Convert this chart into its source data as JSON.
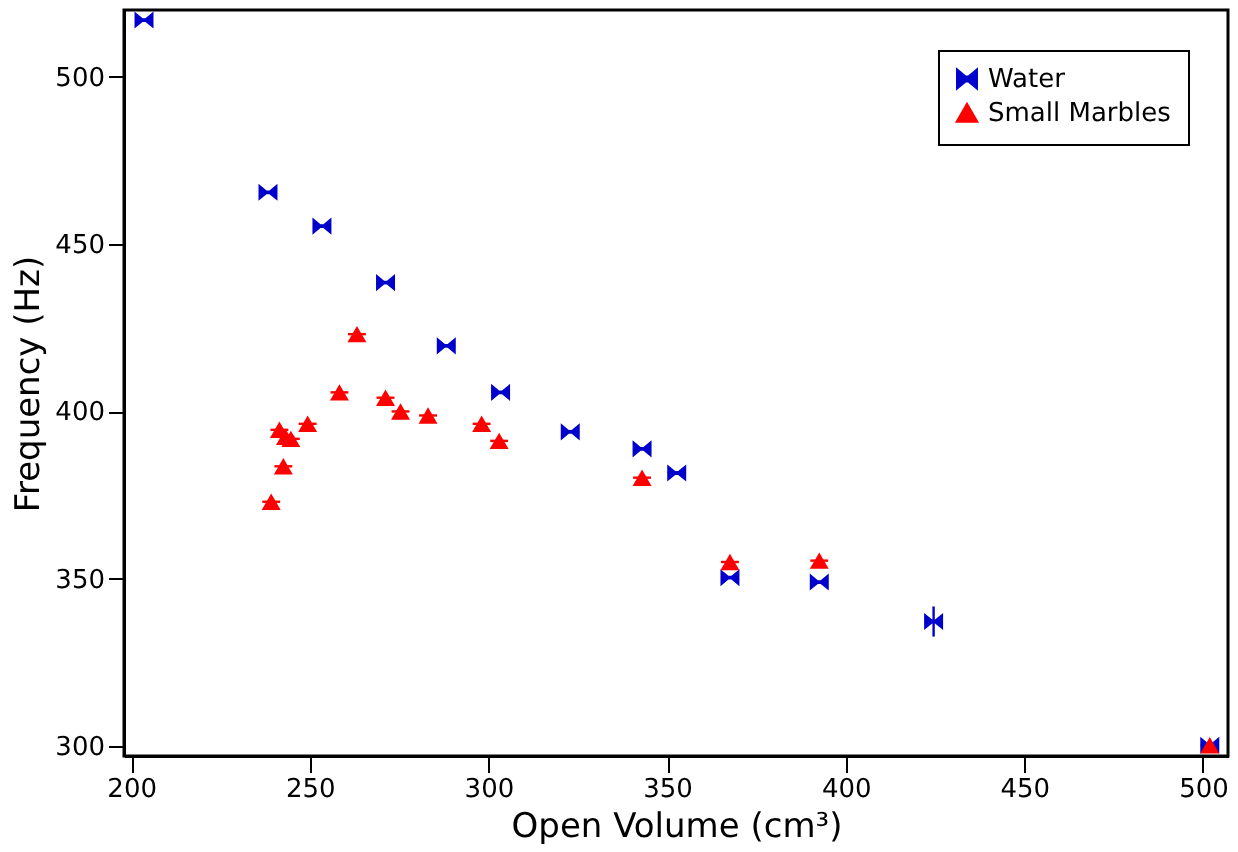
{
  "chart_data": {
    "type": "scatter",
    "xlabel": "Open Volume (cm³)",
    "ylabel": "Frequency (Hz)",
    "xlim": [
      198,
      507
    ],
    "ylim": [
      297,
      520
    ],
    "xticks": [
      200,
      250,
      300,
      350,
      400,
      450,
      500
    ],
    "yticks": [
      300,
      350,
      400,
      450,
      500
    ],
    "grid": false,
    "legend": "top right",
    "series": [
      {
        "name": "Water",
        "color": "#0000cc",
        "x": [
          203.6,
          238.3,
          253.4,
          271.2,
          288.2,
          303.4,
          322.9,
          343,
          352.7,
          367.6,
          392.6,
          424.6,
          501.9
        ],
        "values": [
          517,
          465.5,
          455.4,
          438.5,
          419.6,
          405.7,
          393.9,
          388.8,
          381.6,
          350.3,
          349,
          337.2,
          300.2
        ],
        "xerrors": [
          2.5,
          2.5,
          2.5,
          2.5,
          2.5,
          2.5,
          2.5,
          2.5,
          2.5,
          2.5,
          2.5,
          2.5,
          2.5
        ],
        "errors": [
          null,
          null,
          null,
          null,
          null,
          null,
          null,
          null,
          null,
          null,
          null,
          4.5,
          null
        ]
      },
      {
        "name": "Small Marbles",
        "color": "#ff0000",
        "marker": "triangle",
        "x": [
          239.2,
          241.5,
          242.6,
          243.2,
          244.7,
          249.4,
          258.3,
          263.2,
          271.2,
          275.4,
          283.1,
          298.1,
          303,
          343,
          367.6,
          392.6,
          501.9
        ],
        "values": [
          373,
          394.5,
          383.6,
          392.4,
          391.8,
          396.3,
          405.7,
          423.1,
          404.1,
          400,
          398.8,
          396.3,
          391.2,
          380.2,
          355,
          355.4,
          300.2
        ],
        "xerrors": [
          2.5,
          2.5,
          2.5,
          2.5,
          2.5,
          2.5,
          2.5,
          2.5,
          2.5,
          2.5,
          2.5,
          2.5,
          2.5,
          2.5,
          2.5,
          2.5,
          2.5
        ]
      }
    ]
  }
}
